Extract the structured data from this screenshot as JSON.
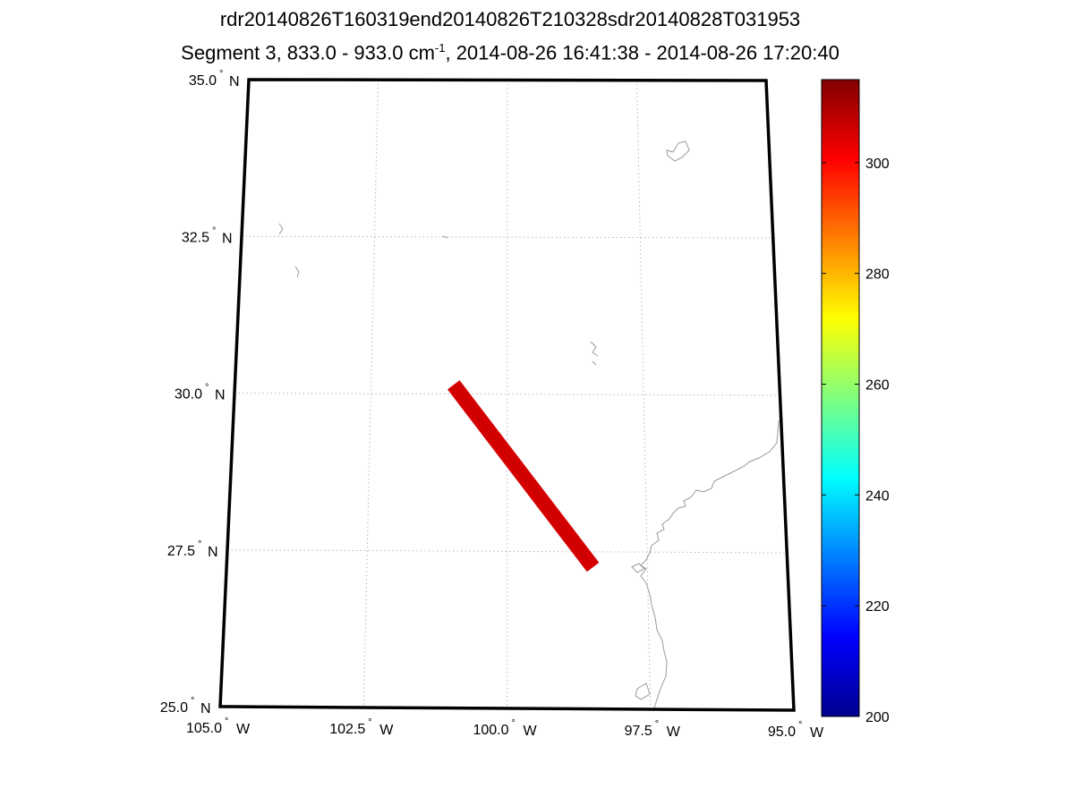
{
  "chart_data": {
    "type": "map",
    "title_line1": "rdr20140826T160319end20140826T210328sdr20140828T031953",
    "title_line2_prefix": "Segment 3, 833.0 - 933.0 cm",
    "title_line2_sup": "-1",
    "title_line2_suffix": ", 2014-08-26 16:41:38 - 2014-08-26 17:20:40",
    "lon_range": [
      -105.0,
      -95.0
    ],
    "lat_range": [
      25.0,
      35.0
    ],
    "lat_ticks": [
      {
        "value": 25.0,
        "label": "25.0",
        "hemi": "N"
      },
      {
        "value": 27.5,
        "label": "27.5",
        "hemi": "N"
      },
      {
        "value": 30.0,
        "label": "30.0",
        "hemi": "N"
      },
      {
        "value": 32.5,
        "label": "32.5",
        "hemi": "N"
      },
      {
        "value": 35.0,
        "label": "35.0",
        "hemi": "N"
      }
    ],
    "lon_ticks": [
      {
        "value": -105.0,
        "label": "105.0",
        "hemi": "W"
      },
      {
        "value": -102.5,
        "label": "102.5",
        "hemi": "W"
      },
      {
        "value": -100.0,
        "label": "100.0",
        "hemi": "W"
      },
      {
        "value": -97.5,
        "label": "97.5",
        "hemi": "W"
      },
      {
        "value": -95.0,
        "label": "95.0",
        "hemi": "W"
      }
    ],
    "grid": true,
    "swath": {
      "start": {
        "lon": -100.9,
        "lat": 30.05
      },
      "end": {
        "lon": -98.55,
        "lat": 27.35
      },
      "value": 305,
      "color": "#d40000"
    },
    "colorbar": {
      "min": 200,
      "max": 315,
      "ticks": [
        200,
        220,
        240,
        260,
        280,
        300
      ],
      "colormap": "jet"
    }
  }
}
